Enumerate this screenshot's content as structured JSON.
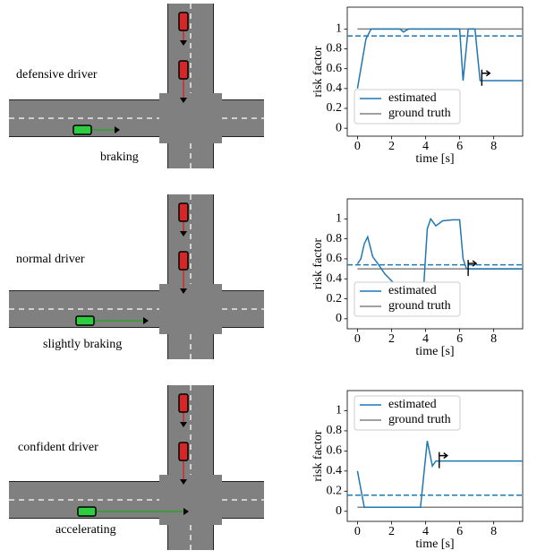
{
  "scenarios": [
    {
      "driver": "defensive driver",
      "action": "braking"
    },
    {
      "driver": "normal driver",
      "action": "slightly braking"
    },
    {
      "driver": "confident driver",
      "action": "accelerating"
    }
  ],
  "chart_data": [
    {
      "type": "line",
      "xlabel": "time [s]",
      "ylabel": "risk factor",
      "xlim": [
        -0.6,
        9.7
      ],
      "ylim": [
        -0.08,
        1.22
      ],
      "xticks": [
        0,
        2,
        4,
        6,
        8
      ],
      "yticks": [
        0,
        0.2,
        0.4,
        0.6,
        0.8,
        1
      ],
      "legend": "lower left",
      "series": [
        {
          "name": "estimated",
          "color": "#1f77b4",
          "x": [
            0,
            0.5,
            0.8,
            2.5,
            2.7,
            3,
            6,
            6.2,
            6.5,
            6.9,
            7.2,
            9.7
          ],
          "values": [
            0.4,
            0.9,
            1,
            1,
            0.97,
            1,
            1,
            0.48,
            1,
            1,
            0.48,
            0.48
          ]
        },
        {
          "name": "ground truth",
          "color": "#808080",
          "x": [
            0,
            9.7
          ],
          "values": [
            1,
            1
          ]
        }
      ],
      "threshold": {
        "value": 0.93,
        "color": "#1f77b4"
      },
      "marker": {
        "x": 7.3,
        "y": 0.5
      }
    },
    {
      "type": "line",
      "xlabel": "time [s]",
      "ylabel": "risk factor",
      "xlim": [
        -0.6,
        9.7
      ],
      "ylim": [
        -0.1,
        1.2
      ],
      "xticks": [
        0,
        2,
        4,
        6,
        8
      ],
      "yticks": [
        0,
        0.2,
        0.4,
        0.6,
        0.8,
        1
      ],
      "legend": "lower left",
      "series": [
        {
          "name": "estimated",
          "color": "#1f77b4",
          "x": [
            0,
            0.2,
            0.4,
            0.6,
            0.9,
            1.2,
            1.6,
            2,
            2.3,
            2.6,
            3,
            3.5,
            3.9,
            4.1,
            4.3,
            4.6,
            5,
            5.6,
            6,
            6.2,
            6.4,
            9.7
          ],
          "values": [
            0.55,
            0.6,
            0.75,
            0.82,
            0.62,
            0.55,
            0.45,
            0.38,
            0.33,
            0.35,
            0.28,
            0.3,
            0.35,
            0.9,
            1,
            0.93,
            0.98,
            0.99,
            0.99,
            0.6,
            0.5,
            0.5
          ]
        },
        {
          "name": "ground truth",
          "color": "#808080",
          "x": [
            0,
            9.7
          ],
          "values": [
            0.5,
            0.5
          ]
        }
      ],
      "threshold": {
        "value": 0.54,
        "color": "#1f77b4"
      },
      "marker": {
        "x": 6.5,
        "y": 0.5
      }
    },
    {
      "type": "line",
      "xlabel": "time [s]",
      "ylabel": "risk factor",
      "xlim": [
        -0.6,
        9.7
      ],
      "ylim": [
        -0.1,
        1.2
      ],
      "xticks": [
        0,
        2,
        4,
        6,
        8
      ],
      "yticks": [
        0,
        0.2,
        0.4,
        0.6,
        0.8,
        1
      ],
      "legend": "upper left",
      "series": [
        {
          "name": "estimated",
          "color": "#1f77b4",
          "x": [
            0,
            0.4,
            3.7,
            4.1,
            4.4,
            4.6,
            9.7
          ],
          "values": [
            0.4,
            0.04,
            0.04,
            0.7,
            0.45,
            0.5,
            0.5
          ]
        },
        {
          "name": "ground truth",
          "color": "#808080",
          "x": [
            0,
            9.7
          ],
          "values": [
            0.04,
            0.04
          ]
        }
      ],
      "threshold": {
        "value": 0.16,
        "color": "#1f77b4"
      },
      "marker": {
        "x": 4.8,
        "y": 0.5
      }
    }
  ]
}
